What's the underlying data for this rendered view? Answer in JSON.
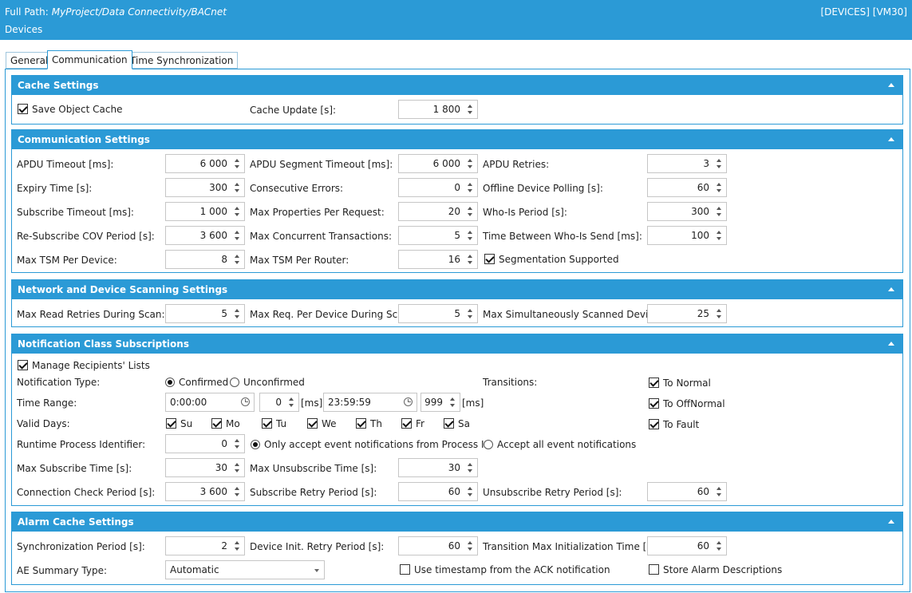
{
  "header": {
    "path_label": "Full Path:",
    "path": "MyProject/Data Connectivity/BACnet",
    "subtitle": "Devices",
    "right": "[DEVICES] [VM30]"
  },
  "tabs": [
    {
      "label": "General"
    },
    {
      "label": "Communication"
    },
    {
      "label": "Time Synchronization"
    }
  ],
  "cache": {
    "title": "Cache Settings",
    "save_object_cache": "Save Object Cache",
    "save_object_cache_checked": true,
    "cache_update_label": "Cache Update [s]:",
    "cache_update_value": "1 800"
  },
  "comm": {
    "title": "Communication Settings",
    "apdu_timeout_label": "APDU Timeout [ms]:",
    "apdu_timeout": "6 000",
    "apdu_seg_timeout_label": "APDU Segment Timeout [ms]:",
    "apdu_seg_timeout": "6 000",
    "apdu_retries_label": "APDU Retries:",
    "apdu_retries": "3",
    "expiry_label": "Expiry Time [s]:",
    "expiry": "300",
    "consecutive_label": "Consecutive Errors:",
    "consecutive": "0",
    "offline_label": "Offline Device Polling [s]:",
    "offline": "60",
    "subscribe_timeout_label": "Subscribe Timeout [ms]:",
    "subscribe_timeout": "1 000",
    "max_props_label": "Max Properties Per Request:",
    "max_props": "20",
    "whois_period_label": "Who-Is Period [s]:",
    "whois_period": "300",
    "resub_label": "Re-Subscribe COV Period [s]:",
    "resub": "3 600",
    "max_concurrent_label": "Max Concurrent Transactions:",
    "max_concurrent": "5",
    "time_between_label": "Time Between Who-Is Send [ms]:",
    "time_between": "100",
    "max_tsm_dev_label": "Max TSM Per Device:",
    "max_tsm_dev": "8",
    "max_tsm_router_label": "Max TSM Per Router:",
    "max_tsm_router": "16",
    "segmentation_label": "Segmentation Supported",
    "segmentation_checked": true
  },
  "scan": {
    "title": "Network and Device Scanning Settings",
    "max_read_label": "Max Read Retries During Scan:",
    "max_read": "5",
    "max_req_label": "Max Req. Per Device During Scan:",
    "max_req": "5",
    "max_sim_label": "Max Simultaneously Scanned Devices:",
    "max_sim": "25"
  },
  "notif": {
    "title": "Notification Class Subscriptions",
    "manage_label": "Manage Recipients' Lists",
    "manage_checked": true,
    "type_label": "Notification Type:",
    "confirmed": "Confirmed",
    "unconfirmed": "Unconfirmed",
    "confirmed_selected": true,
    "transitions_label": "Transitions:",
    "to_normal": "To Normal",
    "to_offnormal": "To OffNormal",
    "to_fault": "To Fault",
    "time_range_label": "Time Range:",
    "time_from": "0:00:00",
    "ms_from": "0",
    "ms_unit": "[ms]",
    "time_to": "23:59:59",
    "ms_to": "999",
    "valid_days_label": "Valid Days:",
    "days": [
      {
        "label": "Su",
        "checked": true
      },
      {
        "label": "Mo",
        "checked": true
      },
      {
        "label": "Tu",
        "checked": true
      },
      {
        "label": "We",
        "checked": true
      },
      {
        "label": "Th",
        "checked": true
      },
      {
        "label": "Fr",
        "checked": true
      },
      {
        "label": "Sa",
        "checked": true
      }
    ],
    "runtime_label": "Runtime Process Identifier:",
    "runtime": "0",
    "only_accept": "Only accept event notifications from Process Id",
    "accept_all": "Accept all event notifications",
    "only_accept_selected": true,
    "max_sub_label": "Max Subscribe Time [s]:",
    "max_sub": "30",
    "max_unsub_label": "Max Unsubscribe Time [s]:",
    "max_unsub": "30",
    "conn_check_label": "Connection Check Period [s]:",
    "conn_check": "3 600",
    "sub_retry_label": "Subscribe Retry Period [s]:",
    "sub_retry": "60",
    "unsub_retry_label": "Unsubscribe Retry Period [s]:",
    "unsub_retry": "60"
  },
  "alarm": {
    "title": "Alarm Cache Settings",
    "sync_label": "Synchronization Period [s]:",
    "sync": "2",
    "dev_init_label": "Device Init. Retry Period [s]:",
    "dev_init": "60",
    "trans_max_label": "Transition Max Initialization Time [s]:",
    "trans_max": "60",
    "ae_label": "AE Summary Type:",
    "ae_value": "Automatic",
    "use_ts_label": "Use timestamp from the ACK notification",
    "use_ts_checked": false,
    "store_desc_label": "Store Alarm Descriptions",
    "store_desc_checked": false
  }
}
